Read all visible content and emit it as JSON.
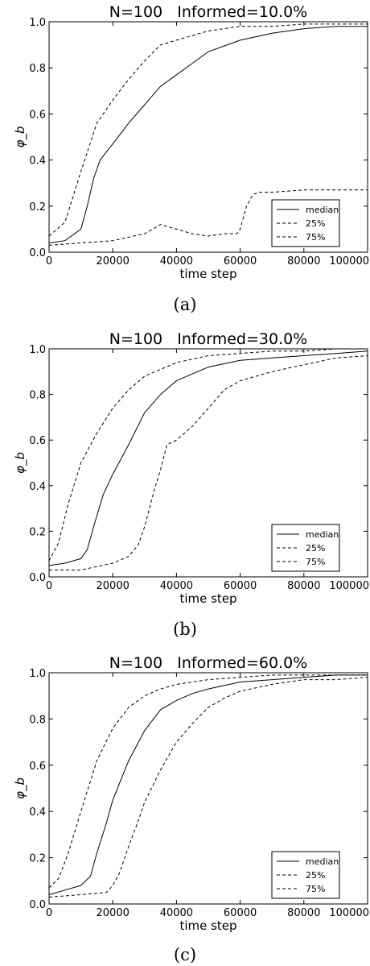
{
  "chart_data": [
    {
      "type": "line",
      "title": "N=100   Informed=10.0%",
      "xlabel": "time step",
      "ylabel": "φ_b",
      "xlim": [
        0,
        100000
      ],
      "ylim": [
        0,
        1.0
      ],
      "xticks": [
        "0",
        "20000",
        "40000",
        "60000",
        "80000",
        "100000"
      ],
      "yticks": [
        "0.0",
        "0.2",
        "0.4",
        "0.6",
        "0.8",
        "1.0"
      ],
      "grid": false,
      "legend_position": "lower-right",
      "caption": "(a)",
      "series": [
        {
          "name": "median",
          "style": "solid",
          "x": [
            0,
            5000,
            10000,
            12000,
            14000,
            16000,
            20000,
            25000,
            30000,
            35000,
            40000,
            45000,
            50000,
            60000,
            70000,
            80000,
            90000,
            100000
          ],
          "y": [
            0.04,
            0.05,
            0.1,
            0.2,
            0.32,
            0.4,
            0.47,
            0.56,
            0.64,
            0.72,
            0.77,
            0.82,
            0.87,
            0.92,
            0.95,
            0.97,
            0.98,
            0.98
          ]
        },
        {
          "name": "25%",
          "style": "dashed",
          "x": [
            0,
            5000,
            10000,
            15000,
            20000,
            25000,
            30000,
            35000,
            40000,
            50000,
            60000,
            70000,
            80000,
            90000,
            100000
          ],
          "y": [
            0.07,
            0.13,
            0.35,
            0.56,
            0.66,
            0.75,
            0.83,
            0.9,
            0.92,
            0.96,
            0.98,
            0.98,
            0.99,
            0.99,
            0.99
          ]
        },
        {
          "name": "75%",
          "style": "dashed",
          "x": [
            0,
            10000,
            20000,
            30000,
            35000,
            40000,
            45000,
            50000,
            55000,
            59000,
            60000,
            62000,
            64000,
            66000,
            70000,
            80000,
            90000,
            100000
          ],
          "y": [
            0.03,
            0.04,
            0.05,
            0.08,
            0.12,
            0.1,
            0.08,
            0.07,
            0.08,
            0.08,
            0.1,
            0.2,
            0.25,
            0.26,
            0.26,
            0.27,
            0.27,
            0.27
          ]
        }
      ]
    },
    {
      "type": "line",
      "title": "N=100   Informed=30.0%",
      "xlabel": "time step",
      "ylabel": "φ_b",
      "xlim": [
        0,
        100000
      ],
      "ylim": [
        0,
        1.0
      ],
      "xticks": [
        "0",
        "20000",
        "40000",
        "60000",
        "80000",
        "100000"
      ],
      "yticks": [
        "0.0",
        "0.2",
        "0.4",
        "0.6",
        "0.8",
        "1.0"
      ],
      "grid": false,
      "legend_position": "lower-right",
      "caption": "(b)",
      "series": [
        {
          "name": "median",
          "style": "solid",
          "x": [
            0,
            5000,
            10000,
            12000,
            14000,
            17000,
            20000,
            25000,
            30000,
            35000,
            40000,
            45000,
            50000,
            60000,
            70000,
            80000,
            90000,
            100000
          ],
          "y": [
            0.05,
            0.06,
            0.08,
            0.12,
            0.22,
            0.36,
            0.45,
            0.58,
            0.72,
            0.8,
            0.86,
            0.89,
            0.92,
            0.95,
            0.96,
            0.97,
            0.98,
            0.99
          ]
        },
        {
          "name": "25%",
          "style": "dashed",
          "x": [
            0,
            3000,
            6000,
            10000,
            15000,
            20000,
            25000,
            30000,
            35000,
            40000,
            50000,
            60000,
            70000,
            80000,
            90000,
            100000
          ],
          "y": [
            0.07,
            0.15,
            0.32,
            0.5,
            0.63,
            0.74,
            0.82,
            0.88,
            0.91,
            0.94,
            0.97,
            0.98,
            0.99,
            0.99,
            1.0,
            1.0
          ]
        },
        {
          "name": "75%",
          "style": "dashed",
          "x": [
            0,
            10000,
            20000,
            25000,
            28000,
            30000,
            33000,
            35000,
            37000,
            40000,
            45000,
            50000,
            55000,
            60000,
            70000,
            80000,
            90000,
            100000
          ],
          "y": [
            0.03,
            0.03,
            0.06,
            0.09,
            0.14,
            0.22,
            0.38,
            0.47,
            0.58,
            0.6,
            0.66,
            0.74,
            0.82,
            0.86,
            0.9,
            0.93,
            0.96,
            0.97
          ]
        }
      ]
    },
    {
      "type": "line",
      "title": "N=100   Informed=60.0%",
      "xlabel": "time step",
      "ylabel": "φ_b",
      "xlim": [
        0,
        100000
      ],
      "ylim": [
        0,
        1.0
      ],
      "xticks": [
        "0",
        "20000",
        "40000",
        "60000",
        "80000",
        "100000"
      ],
      "yticks": [
        "0.0",
        "0.2",
        "0.4",
        "0.6",
        "0.8",
        "1.0"
      ],
      "grid": false,
      "legend_position": "lower-right",
      "caption": "(c)",
      "series": [
        {
          "name": "median",
          "style": "solid",
          "x": [
            0,
            5000,
            10000,
            13000,
            15000,
            18000,
            20000,
            25000,
            30000,
            35000,
            40000,
            45000,
            50000,
            60000,
            70000,
            80000,
            90000,
            100000
          ],
          "y": [
            0.04,
            0.06,
            0.08,
            0.12,
            0.22,
            0.35,
            0.45,
            0.62,
            0.75,
            0.84,
            0.88,
            0.91,
            0.93,
            0.96,
            0.97,
            0.98,
            0.99,
            0.99
          ]
        },
        {
          "name": "25%",
          "style": "dashed",
          "x": [
            0,
            3000,
            6000,
            10000,
            15000,
            20000,
            25000,
            30000,
            35000,
            40000,
            50000,
            60000,
            70000,
            80000,
            90000,
            100000
          ],
          "y": [
            0.07,
            0.11,
            0.22,
            0.4,
            0.62,
            0.76,
            0.85,
            0.9,
            0.93,
            0.95,
            0.97,
            0.98,
            0.99,
            0.99,
            0.99,
            0.99
          ]
        },
        {
          "name": "75%",
          "style": "dashed",
          "x": [
            0,
            10000,
            18000,
            20000,
            22000,
            25000,
            28000,
            30000,
            35000,
            40000,
            45000,
            50000,
            55000,
            60000,
            70000,
            80000,
            90000,
            100000
          ],
          "y": [
            0.03,
            0.04,
            0.05,
            0.08,
            0.13,
            0.25,
            0.36,
            0.44,
            0.58,
            0.7,
            0.78,
            0.85,
            0.89,
            0.92,
            0.95,
            0.97,
            0.97,
            0.98
          ]
        }
      ]
    }
  ]
}
